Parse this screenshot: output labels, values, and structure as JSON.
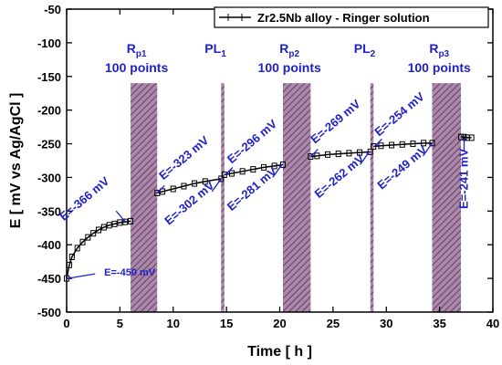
{
  "chart_data": {
    "type": "line",
    "title": "",
    "xlabel": "Time [ h ]",
    "ylabel": "E [ mV vs Ag/AgCl ]",
    "xlim": [
      0,
      40
    ],
    "ylim": [
      -500,
      -50
    ],
    "x_ticks": [
      0,
      5,
      10,
      15,
      20,
      25,
      30,
      35,
      40
    ],
    "y_ticks": [
      -500,
      -450,
      -400,
      -350,
      -300,
      -250,
      -200,
      -150,
      -100,
      -50
    ],
    "grid": false,
    "legend": {
      "position": "top-right",
      "entries": [
        "Zr2.5Nb alloy - Ringer solution"
      ]
    },
    "series": [
      {
        "name": "Zr2.5Nb alloy - Ringer solution",
        "segments": [
          {
            "x": [
              0,
              0.25,
              0.5,
              1,
              1.5,
              2,
              2.5,
              3,
              3.5,
              4,
              4.5,
              5,
              5.5,
              6
            ],
            "y": [
              -450,
              -430,
              -418,
              -405,
              -396,
              -389,
              -383,
              -378,
              -374,
              -371,
              -369,
              -367,
              -366,
              -365
            ]
          },
          {
            "x": [
              8.5,
              9,
              10,
              11,
              12,
              13,
              14.5
            ],
            "y": [
              -323,
              -321,
              -317,
              -313,
              -309,
              -306,
              -302
            ]
          },
          {
            "x": [
              14.8,
              15.5,
              16.5,
              17.5,
              18.5,
              19.5,
              20.3
            ],
            "y": [
              -296,
              -294,
              -291,
              -288,
              -285,
              -283,
              -281
            ]
          },
          {
            "x": [
              22.9,
              23.5,
              24.5,
              25.5,
              26.5,
              27.5,
              28.5
            ],
            "y": [
              -269,
              -268,
              -266,
              -265,
              -264,
              -263,
              -262
            ]
          },
          {
            "x": [
              28.8,
              29.5,
              30.5,
              31.5,
              32.5,
              33.5,
              34.3
            ],
            "y": [
              -254,
              -253,
              -252,
              -251,
              -250,
              -249,
              -249
            ]
          },
          {
            "x": [
              37,
              37.3,
              37.6,
              38
            ],
            "y": [
              -240,
              -240,
              -241,
              -241
            ]
          }
        ]
      }
    ],
    "regions": [
      {
        "label": "Rp1 100 points",
        "x0": 6,
        "x1": 8.5
      },
      {
        "label": "PL1",
        "x0": 14.5,
        "x1": 14.8
      },
      {
        "label": "Rp2 100 points",
        "x0": 20.3,
        "x1": 22.9
      },
      {
        "label": "PL2",
        "x0": 28.5,
        "x1": 28.8
      },
      {
        "label": "Rp3 100 points",
        "x0": 34.3,
        "x1": 37
      }
    ],
    "region_y_range": [
      -500,
      -160
    ],
    "region_labels": [
      {
        "main": "R",
        "sub": "p1",
        "line2": "100 points"
      },
      {
        "main": "PL",
        "sub": "1",
        "line2": ""
      },
      {
        "main": "R",
        "sub": "p2",
        "line2": "100 points"
      },
      {
        "main": "PL",
        "sub": "2",
        "line2": ""
      },
      {
        "main": "R",
        "sub": "p3",
        "line2": "100 points"
      }
    ],
    "annotations": [
      {
        "text": "E=-450 mV",
        "x": 0.1,
        "y": -450
      },
      {
        "text": "E=-366 mV",
        "x": 5.5,
        "y": -366
      },
      {
        "text": "E=-323 mV",
        "x": 8.5,
        "y": -323
      },
      {
        "text": "E=-302 mV",
        "x": 14.5,
        "y": -302
      },
      {
        "text": "E=-296 mV",
        "x": 14.9,
        "y": -296
      },
      {
        "text": "E=-281 mV",
        "x": 20.2,
        "y": -281
      },
      {
        "text": "E=-269 mV",
        "x": 22.9,
        "y": -269
      },
      {
        "text": "E=-262 mV",
        "x": 28.4,
        "y": -262
      },
      {
        "text": "E=-254 mV",
        "x": 28.9,
        "y": -254
      },
      {
        "text": "E=-249 mV",
        "x": 34.3,
        "y": -249
      },
      {
        "text": "E=-241 mV",
        "x": 37.3,
        "y": -241
      }
    ],
    "colors": {
      "line": "#000000",
      "annotation": "#1f22c9",
      "region_fill": "#a988a8",
      "region_hatch": "#6a3c66"
    }
  }
}
